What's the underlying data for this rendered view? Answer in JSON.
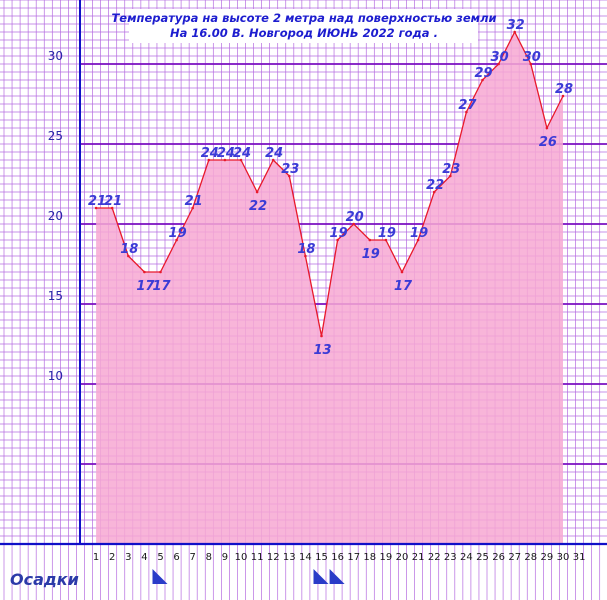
{
  "chart_data": {
    "type": "area",
    "title_lines": [
      "Температура  на  высоте  2  метра  над  поверхностью  земли",
      "На  16.00  В. Новгород  ИЮНЬ  2022  года ."
    ],
    "x": [
      1,
      2,
      3,
      4,
      5,
      6,
      7,
      8,
      9,
      10,
      11,
      12,
      13,
      14,
      15,
      16,
      17,
      18,
      19,
      20,
      21,
      22,
      23,
      24,
      25,
      26,
      27,
      28,
      29,
      30
    ],
    "values": [
      21,
      21,
      18,
      17,
      17,
      19,
      21,
      24,
      24,
      24,
      22,
      24,
      23,
      18,
      13,
      19,
      20,
      19,
      19,
      17,
      19,
      22,
      23,
      27,
      29,
      30,
      32,
      30,
      26,
      28
    ],
    "x_ticks": [
      "1",
      "2",
      "3",
      "4",
      "5",
      "6",
      "7",
      "8",
      "9",
      "10",
      "11",
      "12",
      "13",
      "14",
      "15",
      "16",
      "17",
      "18",
      "19",
      "20",
      "21",
      "22",
      "23",
      "24",
      "25",
      "26",
      "27",
      "28",
      "29",
      "30",
      "31"
    ],
    "y_ticks": [
      "10",
      "15",
      "20",
      "25",
      "30"
    ],
    "ylim": [
      0,
      35
    ],
    "xlim": [
      0,
      31
    ],
    "grid": true,
    "precip_label": "Осадки",
    "precip_days": [
      5,
      15,
      16
    ],
    "colors": {
      "fill": "#f7a8d2",
      "line": "#e8192c",
      "grid_minor": "#b56be0",
      "grid_major": "#7a0fc0",
      "axis": "#1010c8",
      "labels": "#3b3bd6",
      "precip_marker": "#2a3cc8"
    }
  }
}
